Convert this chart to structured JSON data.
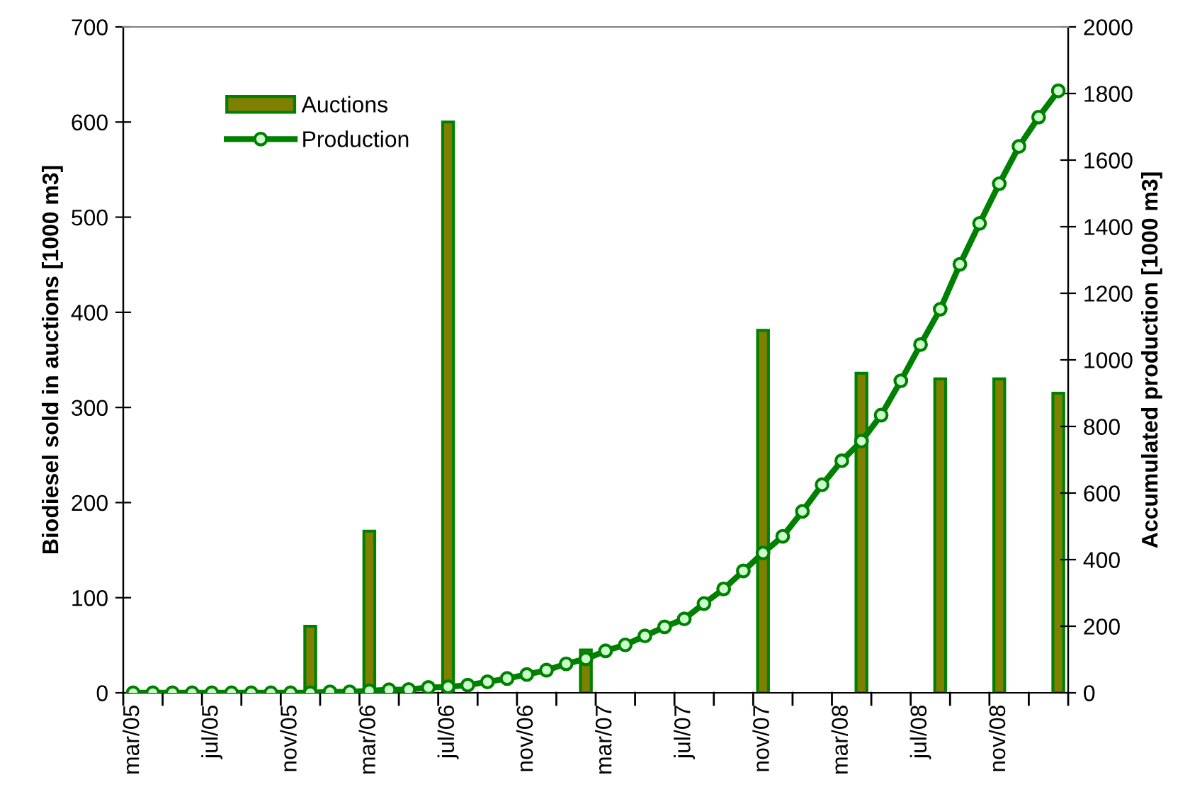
{
  "chart_data": {
    "type": "bar",
    "categories": [
      "mar/05",
      null,
      null,
      null,
      "jul/05",
      null,
      null,
      null,
      "nov/05",
      null,
      null,
      null,
      "mar/06",
      null,
      null,
      null,
      "jul/06",
      null,
      null,
      null,
      "nov/06",
      null,
      null,
      null,
      "mar/07",
      null,
      null,
      null,
      "jul/07",
      null,
      null,
      null,
      "nov/07",
      null,
      null,
      null,
      "mar/08",
      null,
      null,
      null,
      "jul/08",
      null,
      null,
      null,
      "nov/08",
      null,
      null,
      null
    ],
    "series": [
      {
        "name": "Auctions",
        "color": "#808000",
        "values": [
          null,
          null,
          null,
          null,
          null,
          null,
          null,
          null,
          null,
          70,
          null,
          null,
          170,
          null,
          null,
          null,
          600,
          null,
          null,
          null,
          null,
          null,
          null,
          45,
          null,
          null,
          null,
          null,
          null,
          null,
          null,
          null,
          381,
          null,
          null,
          null,
          null,
          336,
          null,
          null,
          null,
          330,
          null,
          null,
          330,
          null,
          null,
          315
        ]
      },
      {
        "name": "Production",
        "type": "line",
        "axis": "y2",
        "color": "#008000",
        "marker": "circle",
        "line_style": "solid",
        "values": [
          0,
          0,
          0,
          0,
          0,
          0,
          0,
          0,
          0,
          0,
          3,
          3,
          6,
          9,
          10,
          16,
          18,
          23,
          33,
          43,
          55,
          68,
          87,
          102,
          126,
          144,
          171,
          198,
          222,
          268,
          312,
          366,
          420,
          470,
          545,
          625,
          697,
          756,
          834,
          937,
          1046,
          1152,
          1287,
          1410,
          1529,
          1641,
          1729,
          1808
        ]
      }
    ],
    "ylabel": "Biodiesel sold in auctions [1000 m3]",
    "y2label": "Accumulated production [1000 m3]",
    "ylim": [
      0,
      700
    ],
    "yticks": [
      0,
      100,
      200,
      300,
      400,
      500,
      600,
      700
    ],
    "y2lim": [
      0,
      2000
    ],
    "y2ticks": [
      0,
      200,
      400,
      600,
      800,
      1000,
      1200,
      1400,
      1600,
      1800,
      2000
    ],
    "grid": false,
    "legend": "top left"
  }
}
